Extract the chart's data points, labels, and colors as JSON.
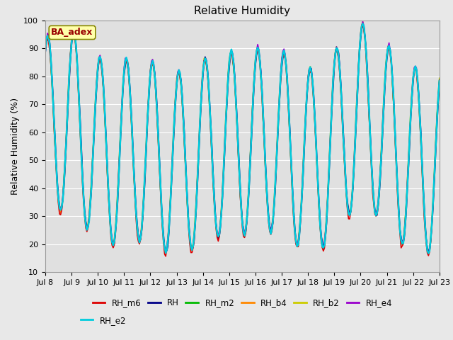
{
  "title": "Relative Humidity",
  "ylabel": "Relative Humidity (%)",
  "ylim": [
    10,
    100
  ],
  "xlim": [
    0,
    360
  ],
  "series_colors": {
    "RH_m6": "#dd0000",
    "RH": "#000088",
    "RH_m2": "#00bb00",
    "RH_b4": "#ff8800",
    "RH_b2": "#cccc00",
    "RH_e4": "#9900cc",
    "RH_e2": "#00ccdd"
  },
  "series_order": [
    "RH_b2",
    "RH_m2",
    "RH_b4",
    "RH_e4",
    "RH",
    "RH_m6",
    "RH_e2"
  ],
  "legend_row1": [
    "RH_m6",
    "RH",
    "RH_m2",
    "RH_b4",
    "RH_b2",
    "RH_e4"
  ],
  "legend_row2": [
    "RH_e2"
  ],
  "xtick_labels": [
    "Jul 8",
    "Jul 9",
    "Jul 10",
    "Jul 11",
    "Jul 12",
    "Jul 13",
    "Jul 14",
    "Jul 15",
    "Jul 16",
    "Jul 17",
    "Jul 18",
    "Jul 19",
    "Jul 20",
    "Jul 21",
    "Jul 22",
    "Jul 23"
  ],
  "xtick_positions": [
    0,
    24,
    48,
    72,
    96,
    120,
    144,
    168,
    192,
    216,
    240,
    264,
    288,
    312,
    336,
    360
  ],
  "ba_adex_label": "BA_adex",
  "fig_bg_color": "#e8e8e8",
  "plot_bg_color": "#e0e0e0",
  "grid_color": "#ffffff",
  "title_fontsize": 11,
  "axis_fontsize": 9,
  "tick_fontsize": 8
}
